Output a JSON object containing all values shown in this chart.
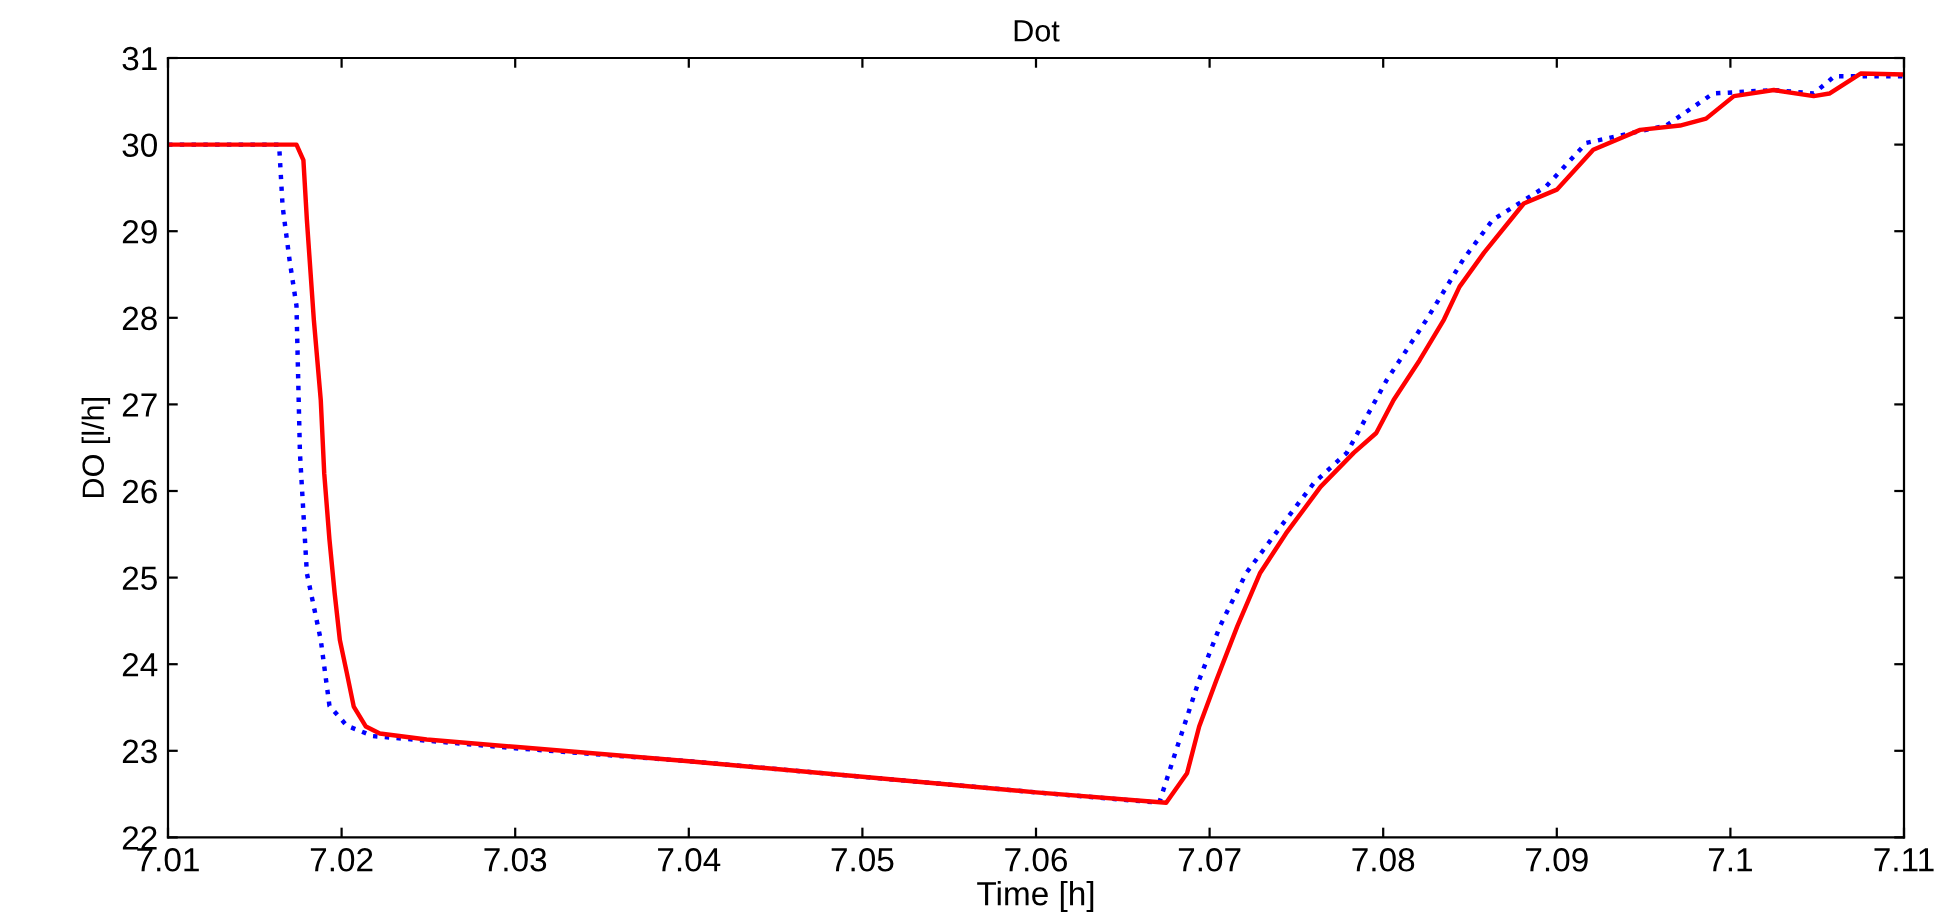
{
  "chart_data": {
    "type": "line",
    "title": "Dot",
    "xlabel": "Time [h]",
    "ylabel": "DO [l/h]",
    "xlim": [
      7.01,
      7.11
    ],
    "xticks": [
      7.01,
      7.02,
      7.03,
      7.04,
      7.05,
      7.06,
      7.07,
      7.08,
      7.09,
      7.1,
      7.11
    ],
    "ylim": [
      22,
      31
    ],
    "yticks": [
      22,
      23,
      24,
      25,
      26,
      27,
      28,
      29,
      30,
      31
    ],
    "grid": false,
    "series": [
      {
        "color": "#0000ff",
        "line_style": "dotted",
        "x": [
          7.01,
          7.0164,
          7.0166,
          7.017,
          7.0174,
          7.0176,
          7.018,
          7.0188,
          7.0193,
          7.0203,
          7.0218,
          7.03,
          7.04,
          7.05,
          7.06,
          7.0671,
          7.0679,
          7.0694,
          7.0706,
          7.0721,
          7.0741,
          7.076,
          7.0779,
          7.0802,
          7.0825,
          7.0846,
          7.0863,
          7.0894,
          7.0917,
          7.0963,
          7.099,
          7.1025,
          7.1048,
          7.106,
          7.11
        ],
        "values": [
          30.0,
          30.0,
          29.29,
          28.67,
          28.14,
          26.44,
          25.05,
          24.28,
          23.52,
          23.29,
          23.17,
          23.03,
          22.88,
          22.7,
          22.52,
          22.4,
          22.9,
          23.82,
          24.44,
          25.05,
          25.59,
          26.09,
          26.44,
          27.28,
          27.98,
          28.67,
          29.13,
          29.52,
          30.02,
          30.22,
          30.59,
          30.63,
          30.59,
          30.79,
          30.79
        ]
      },
      {
        "color": "#ff0000",
        "line_style": "solid",
        "x": [
          7.01,
          7.0174,
          7.0178,
          7.018,
          7.0184,
          7.0188,
          7.019,
          7.0193,
          7.0196,
          7.0199,
          7.0203,
          7.0207,
          7.0214,
          7.0222,
          7.0249,
          7.0303,
          7.04,
          7.05,
          7.06,
          7.0675,
          7.0687,
          7.0694,
          7.0704,
          7.0716,
          7.0729,
          7.0744,
          7.0764,
          7.0783,
          7.0796,
          7.0806,
          7.0821,
          7.0835,
          7.0844,
          7.0858,
          7.0881,
          7.09,
          7.0921,
          7.0948,
          7.0971,
          7.0986,
          7.1002,
          7.1025,
          7.1048,
          7.1057,
          7.1075,
          7.11
        ],
        "values": [
          30.0,
          30.0,
          29.82,
          29.13,
          27.98,
          27.05,
          26.2,
          25.44,
          24.82,
          24.28,
          23.9,
          23.51,
          23.28,
          23.2,
          23.13,
          23.04,
          22.88,
          22.7,
          22.52,
          22.4,
          22.74,
          23.28,
          23.82,
          24.44,
          25.05,
          25.51,
          26.05,
          26.44,
          26.67,
          27.05,
          27.51,
          27.98,
          28.36,
          28.75,
          29.32,
          29.48,
          29.94,
          30.17,
          30.22,
          30.3,
          30.56,
          30.63,
          30.56,
          30.59,
          30.82,
          30.81
        ]
      }
    ]
  }
}
